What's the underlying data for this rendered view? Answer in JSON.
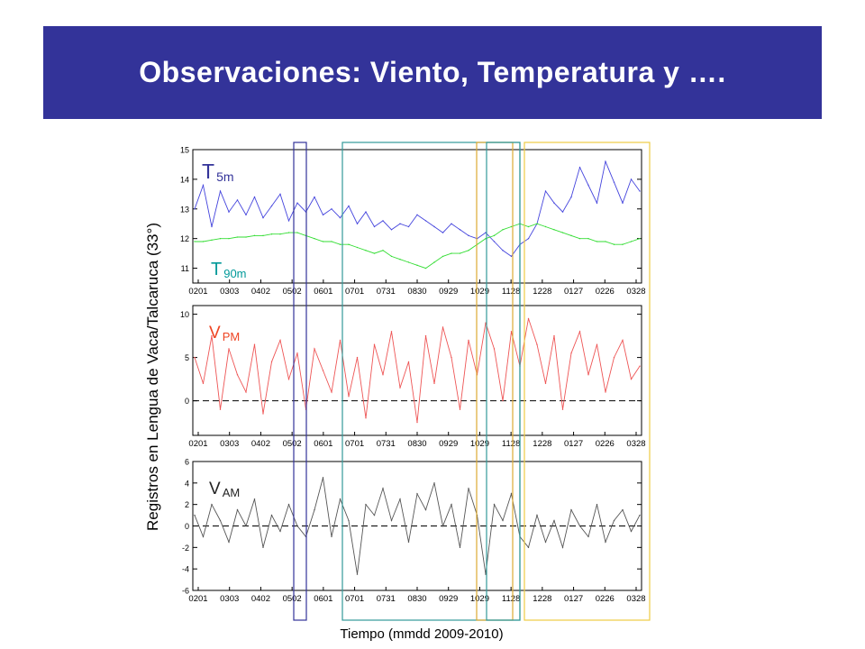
{
  "slide": {
    "title": "Observaciones: Viento, Temperatura y ….",
    "ylabel": "Registros en Lengua de Vaca/Talcaruca (33°)",
    "xlabel": "Tiempo (mmdd 2009-2010)"
  },
  "chart_data": [
    {
      "type": "line",
      "panel": "temperature",
      "x_ticks": [
        "0201",
        "0303",
        "0402",
        "0502",
        "0601",
        "0701",
        "0731",
        "0830",
        "0929",
        "1029",
        "1128",
        "1228",
        "0127",
        "0226",
        "0328"
      ],
      "ylim": [
        10.5,
        15
      ],
      "y_ticks": [
        11,
        12,
        13,
        14,
        15
      ],
      "series": [
        {
          "name": "T5m",
          "label_main": "T",
          "label_sub": "5m",
          "color": "#4444dd",
          "label_color": "#333399",
          "values": [
            13.0,
            13.8,
            12.4,
            13.6,
            12.9,
            13.3,
            12.8,
            13.4,
            12.7,
            13.1,
            13.5,
            12.6,
            13.2,
            12.9,
            13.4,
            12.8,
            13.0,
            12.7,
            13.1,
            12.5,
            12.9,
            12.4,
            12.6,
            12.3,
            12.5,
            12.4,
            12.8,
            12.6,
            12.4,
            12.2,
            12.5,
            12.3,
            12.1,
            12.0,
            12.2,
            11.9,
            11.6,
            11.4,
            11.8,
            12.0,
            12.5,
            13.6,
            13.2,
            12.9,
            13.4,
            14.4,
            13.8,
            13.2,
            14.6,
            13.9,
            13.2,
            14.0,
            13.6
          ]
        },
        {
          "name": "T90m",
          "label_main": "T",
          "label_sub": "90m",
          "color": "#33dd33",
          "label_color": "#009999",
          "values": [
            11.9,
            11.9,
            11.95,
            12.0,
            12.0,
            12.05,
            12.05,
            12.1,
            12.1,
            12.15,
            12.15,
            12.2,
            12.2,
            12.1,
            12.0,
            11.9,
            11.9,
            11.8,
            11.8,
            11.7,
            11.6,
            11.5,
            11.6,
            11.4,
            11.3,
            11.2,
            11.1,
            11.0,
            11.2,
            11.4,
            11.5,
            11.5,
            11.6,
            11.8,
            12.0,
            12.1,
            12.3,
            12.4,
            12.5,
            12.4,
            12.5,
            12.4,
            12.3,
            12.2,
            12.1,
            12.0,
            12.0,
            11.9,
            11.9,
            11.8,
            11.8,
            11.9,
            12.0
          ]
        }
      ]
    },
    {
      "type": "line",
      "panel": "v_pm",
      "x_ticks": [
        "0201",
        "0303",
        "0402",
        "0502",
        "0601",
        "0701",
        "0731",
        "0830",
        "0929",
        "1029",
        "1128",
        "1228",
        "0127",
        "0226",
        "0328"
      ],
      "ylim": [
        -4,
        11
      ],
      "y_ticks": [
        0,
        5,
        10
      ],
      "zero_line": true,
      "series": [
        {
          "name": "VPM",
          "label_main": "V",
          "label_sub": "PM",
          "color": "#ee5555",
          "label_color": "#ee4422",
          "values": [
            5.0,
            2.0,
            7.5,
            -1.0,
            6.0,
            3.0,
            1.0,
            6.5,
            -1.5,
            4.5,
            7.0,
            2.5,
            5.5,
            -1.0,
            6.0,
            3.5,
            1.0,
            7.0,
            0.5,
            5.0,
            -2.0,
            6.5,
            3.0,
            8.0,
            1.5,
            4.5,
            -2.5,
            7.5,
            2.0,
            8.5,
            5.0,
            -1.0,
            7.0,
            3.0,
            9.0,
            6.0,
            0.0,
            8.0,
            4.0,
            9.5,
            6.5,
            2.0,
            7.5,
            -1.0,
            5.5,
            8.0,
            3.0,
            6.5,
            1.0,
            5.0,
            7.0,
            2.5,
            4.0
          ]
        }
      ]
    },
    {
      "type": "line",
      "panel": "v_am",
      "x_ticks": [
        "0201",
        "0303",
        "0402",
        "0502",
        "0601",
        "0701",
        "0731",
        "0830",
        "0929",
        "1029",
        "1128",
        "1228",
        "0127",
        "0226",
        "0328"
      ],
      "ylim": [
        -6,
        6
      ],
      "y_ticks": [
        -6,
        -4,
        -2,
        0,
        2,
        4,
        6
      ],
      "zero_line": true,
      "series": [
        {
          "name": "VAM",
          "label_main": "V",
          "label_sub": "AM",
          "color": "#555555",
          "label_color": "#222222",
          "values": [
            1.0,
            -1.0,
            2.0,
            0.5,
            -1.5,
            1.5,
            0.0,
            2.5,
            -2.0,
            1.0,
            -0.5,
            2.0,
            0.0,
            -1.0,
            1.5,
            4.5,
            -1.0,
            2.5,
            0.5,
            -4.5,
            2.0,
            1.0,
            3.5,
            0.5,
            2.5,
            -1.5,
            3.0,
            1.5,
            4.0,
            0.0,
            2.0,
            -2.0,
            3.5,
            1.0,
            -4.5,
            2.0,
            0.5,
            3.0,
            -1.0,
            -2.0,
            1.0,
            -1.5,
            0.5,
            -2.0,
            1.5,
            0.0,
            -1.0,
            2.0,
            -1.5,
            0.5,
            1.5,
            -0.5,
            1.0
          ]
        }
      ]
    }
  ],
  "highlight_boxes": [
    {
      "name": "box-0502-0601",
      "color": "#333399"
    },
    {
      "name": "box-0701-1029",
      "color": "#339999"
    },
    {
      "name": "box-1029-1128-gold",
      "color": "#ddaa33"
    },
    {
      "name": "box-1029-1128-teal",
      "color": "#339999"
    },
    {
      "name": "box-1128-0328",
      "color": "#eecc44"
    }
  ]
}
